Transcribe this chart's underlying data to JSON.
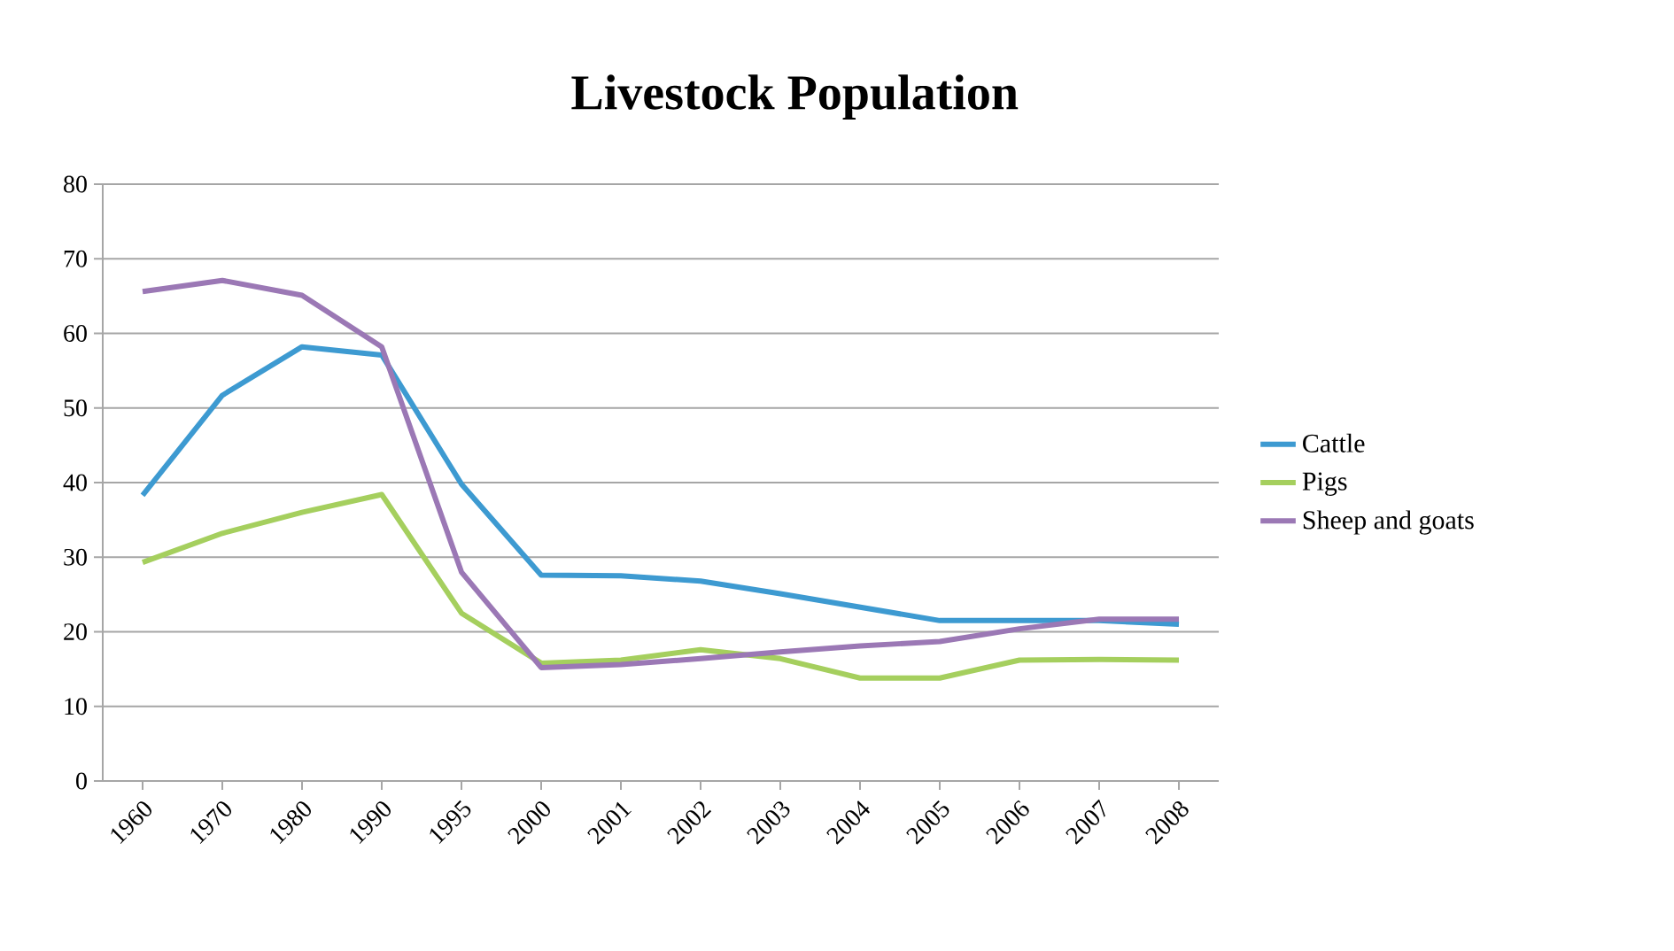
{
  "chart_data": {
    "type": "line",
    "title": "Livestock Population",
    "categories": [
      "1960",
      "1970",
      "1980",
      "1990",
      "1995",
      "2000",
      "2001",
      "2002",
      "2003",
      "2004",
      "2005",
      "2006",
      "2007",
      "2008"
    ],
    "series": [
      {
        "name": "Cattle",
        "color": "#3d9ad1",
        "values": [
          38.3,
          51.7,
          58.2,
          57.1,
          39.8,
          27.6,
          27.5,
          26.8,
          25.1,
          23.3,
          21.5,
          21.5,
          21.5,
          21.0
        ]
      },
      {
        "name": "Pigs",
        "color": "#a5cf5e",
        "values": [
          29.3,
          33.2,
          36.0,
          38.4,
          22.5,
          15.8,
          16.2,
          17.6,
          16.4,
          13.8,
          13.8,
          16.2,
          16.3,
          16.2
        ]
      },
      {
        "name": "Sheep and goats",
        "color": "#9b78b5",
        "values": [
          65.6,
          67.1,
          65.1,
          58.2,
          28.0,
          15.2,
          15.6,
          16.4,
          17.3,
          18.1,
          18.7,
          20.4,
          21.7,
          21.7
        ]
      }
    ],
    "ylim": [
      0,
      80
    ],
    "yticks": [
      0,
      10,
      20,
      30,
      40,
      50,
      60,
      70,
      80
    ],
    "grid": "y",
    "legend": "right",
    "marker": "none",
    "line_style": "solid"
  }
}
